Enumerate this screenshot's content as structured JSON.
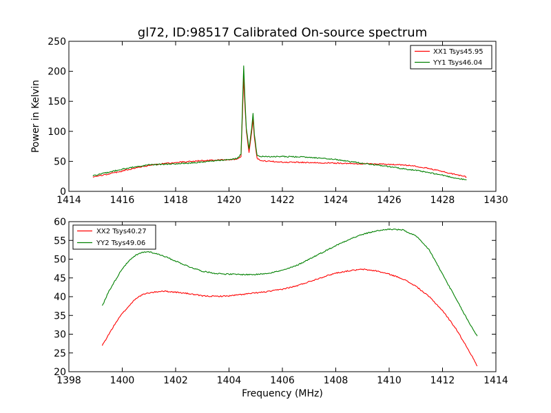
{
  "figure": {
    "title": "gl72, ID:98517 Calibrated On-source spectrum"
  },
  "colors": {
    "xx": "#ff0000",
    "yy": "#008000"
  },
  "chart_data": [
    {
      "type": "line",
      "panel": "top",
      "title": "gl72, ID:98517 Calibrated On-source spectrum",
      "xlabel": "",
      "ylabel": "Power in Kelvin",
      "xlim": [
        1414,
        1430
      ],
      "ylim": [
        0,
        250
      ],
      "xticks": [
        1414,
        1416,
        1418,
        1420,
        1422,
        1424,
        1426,
        1428,
        1430
      ],
      "yticks": [
        0,
        50,
        100,
        150,
        200,
        250
      ],
      "grid": false,
      "legend_position": "top-right",
      "series": [
        {
          "name": "XX1 Tsys45.95",
          "color": "#ff0000",
          "x": [
            1414.9,
            1415.5,
            1416.0,
            1416.5,
            1417.0,
            1417.5,
            1418.0,
            1418.5,
            1419.0,
            1419.5,
            1420.0,
            1420.3,
            1420.45,
            1420.55,
            1420.6,
            1420.65,
            1420.75,
            1420.85,
            1420.9,
            1420.95,
            1421.05,
            1421.2,
            1421.5,
            1422.0,
            1422.5,
            1423.0,
            1423.5,
            1424.0,
            1424.5,
            1425.0,
            1425.5,
            1426.0,
            1426.5,
            1427.0,
            1427.5,
            1428.0,
            1428.5,
            1428.9
          ],
          "values": [
            24,
            29,
            34,
            39,
            43,
            46,
            48,
            50,
            51,
            52,
            53,
            54,
            58,
            190,
            140,
            100,
            65,
            100,
            120,
            90,
            55,
            51,
            50,
            49,
            48.5,
            48,
            47.5,
            47,
            46.5,
            46,
            45.5,
            45,
            44,
            42,
            38,
            33,
            28,
            24
          ]
        },
        {
          "name": "YY1 Tsys46.04",
          "color": "#008000",
          "x": [
            1414.9,
            1415.5,
            1416.0,
            1416.5,
            1417.0,
            1417.5,
            1418.0,
            1418.5,
            1419.0,
            1419.5,
            1420.0,
            1420.3,
            1420.45,
            1420.55,
            1420.6,
            1420.65,
            1420.75,
            1420.85,
            1420.9,
            1420.95,
            1421.05,
            1421.2,
            1421.5,
            1422.0,
            1422.5,
            1423.0,
            1423.5,
            1424.0,
            1424.5,
            1425.0,
            1425.5,
            1426.0,
            1426.5,
            1427.0,
            1427.5,
            1428.0,
            1428.5,
            1428.9
          ],
          "values": [
            26,
            32,
            37,
            41,
            44,
            45,
            46,
            47,
            49,
            51,
            53,
            55,
            62,
            210,
            150,
            105,
            70,
            105,
            130,
            95,
            60,
            58,
            58,
            58,
            57.5,
            57,
            55,
            53,
            50,
            47,
            44,
            41,
            38,
            35,
            31,
            27,
            22,
            19
          ]
        }
      ]
    },
    {
      "type": "line",
      "panel": "bottom",
      "title": "",
      "xlabel": "Frequency (MHz)",
      "ylabel": "",
      "xlim": [
        1398,
        1414
      ],
      "ylim": [
        20,
        60
      ],
      "xticks": [
        1398,
        1400,
        1402,
        1404,
        1406,
        1408,
        1410,
        1412,
        1414
      ],
      "yticks": [
        20,
        25,
        30,
        35,
        40,
        45,
        50,
        55,
        60
      ],
      "grid": false,
      "legend_position": "top-left",
      "series": [
        {
          "name": "XX2 Tsys40.27",
          "color": "#ff0000",
          "x": [
            1399.25,
            1399.5,
            1399.75,
            1400.0,
            1400.25,
            1400.5,
            1400.75,
            1401.0,
            1401.5,
            1402.0,
            1402.5,
            1403.0,
            1403.5,
            1404.0,
            1404.5,
            1405.0,
            1405.5,
            1406.0,
            1406.5,
            1407.0,
            1407.5,
            1408.0,
            1408.5,
            1409.0,
            1409.5,
            1410.0,
            1410.5,
            1411.0,
            1411.5,
            1412.0,
            1412.5,
            1413.0,
            1413.3
          ],
          "values": [
            27,
            30,
            33,
            35.5,
            37.5,
            39.5,
            40.5,
            41,
            41.5,
            41.2,
            40.8,
            40.2,
            40.1,
            40.2,
            40.6,
            41,
            41.4,
            42,
            42.8,
            44,
            45.2,
            46.3,
            46.9,
            47.3,
            46.9,
            46,
            44.8,
            42.8,
            40,
            36.3,
            31.5,
            25.5,
            21.5
          ]
        },
        {
          "name": "YY2 Tsys49.06",
          "color": "#008000",
          "x": [
            1399.25,
            1399.5,
            1399.75,
            1400.0,
            1400.25,
            1400.5,
            1400.75,
            1401.0,
            1401.5,
            1402.0,
            1402.5,
            1403.0,
            1403.5,
            1404.0,
            1404.5,
            1405.0,
            1405.5,
            1406.0,
            1406.5,
            1407.0,
            1407.5,
            1408.0,
            1408.5,
            1409.0,
            1409.5,
            1410.0,
            1410.5,
            1411.0,
            1411.5,
            1412.0,
            1412.5,
            1413.0,
            1413.3
          ],
          "values": [
            37.5,
            41.5,
            44.5,
            47.5,
            49.5,
            51,
            51.8,
            52,
            51,
            49.5,
            48,
            46.8,
            46.2,
            46,
            45.9,
            45.9,
            46.3,
            47,
            48.2,
            50,
            51.8,
            53.6,
            55.3,
            56.6,
            57.5,
            58,
            57.8,
            56.2,
            52.5,
            46,
            39.5,
            33,
            29.5
          ]
        }
      ]
    }
  ]
}
